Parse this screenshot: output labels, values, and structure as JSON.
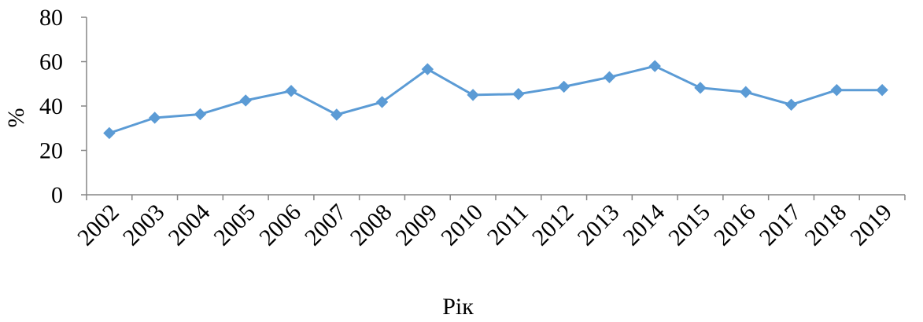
{
  "chart_data": {
    "type": "line",
    "title": "",
    "xlabel": "Рік",
    "ylabel": "%",
    "ylim": [
      0,
      80
    ],
    "yticks": [
      "0",
      "20",
      "40",
      "60",
      "80"
    ],
    "categories": [
      "2002",
      "2003",
      "2004",
      "2005",
      "2006",
      "2007",
      "2008",
      "2009",
      "2010",
      "2011",
      "2012",
      "2013",
      "2014",
      "2015",
      "2016",
      "2017",
      "2018",
      "2019"
    ],
    "series": [
      {
        "values": [
          27.8,
          34.7,
          36.3,
          42.5,
          46.8,
          36.1,
          41.8,
          56.6,
          45.0,
          45.4,
          48.7,
          53.0,
          58.0,
          48.2,
          46.3,
          40.6,
          47.2,
          47.2
        ]
      }
    ],
    "grid": false,
    "legend": "none",
    "series_color": "#5B9BD5",
    "axis_color": "#868686"
  }
}
